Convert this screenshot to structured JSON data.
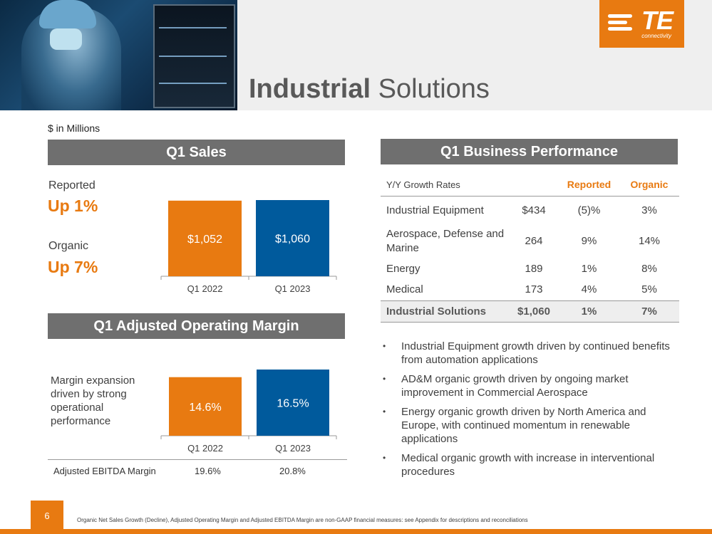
{
  "header": {
    "title_bold": "Industrial",
    "title_rest": "Solutions",
    "logo_text": "TE",
    "logo_sub": "connectivity"
  },
  "units_label": "$ in Millions",
  "q1_sales": {
    "heading": "Q1 Sales",
    "reported_label": "Reported",
    "reported_value": "Up 1%",
    "organic_label": "Organic",
    "organic_value": "Up 7%"
  },
  "margin": {
    "heading": "Q1 Adjusted Operating Margin",
    "note": "Margin expansion driven by strong operational performance",
    "ebitda_label": "Adjusted EBITDA Margin",
    "ebitda_values": [
      "19.6%",
      "20.8%"
    ]
  },
  "performance": {
    "heading": "Q1 Business Performance",
    "col_label": "Y/Y Growth Rates",
    "col_reported": "Reported",
    "col_organic": "Organic",
    "rows": [
      {
        "name": "Industrial Equipment",
        "sales": "$434",
        "reported": "(5)%",
        "organic": "3%"
      },
      {
        "name": "Aerospace, Defense and Marine",
        "sales": "264",
        "reported": "9%",
        "organic": "14%"
      },
      {
        "name": "Energy",
        "sales": "189",
        "reported": "1%",
        "organic": "8%"
      },
      {
        "name": "Medical",
        "sales": "173",
        "reported": "4%",
        "organic": "5%"
      }
    ],
    "total": {
      "name": "Industrial Solutions",
      "sales": "$1,060",
      "reported": "1%",
      "organic": "7%"
    }
  },
  "bullets": [
    "Industrial Equipment growth driven by continued benefits from automation applications",
    "AD&M organic growth driven by ongoing market improvement in Commercial Aerospace",
    "Energy organic growth driven by North America and Europe, with continued momentum in renewable applications",
    "Medical organic growth with increase in interventional procedures"
  ],
  "footer": {
    "page_number": "6",
    "footnote": "Organic Net Sales Growth (Decline), Adjusted Operating Margin and Adjusted EBITDA Margin are non-GAAP financial measures: see Appendix for descriptions and reconciliations"
  },
  "colors": {
    "accent": "#e87a11",
    "blue": "#005a9c",
    "header_gray": "#6f6f6f"
  },
  "chart_data": [
    {
      "type": "bar",
      "title": "Q1 Sales",
      "categories": [
        "Q1 2022",
        "Q1 2023"
      ],
      "values": [
        1052,
        1060
      ],
      "labels": [
        "$1,052",
        "$1,060"
      ],
      "colors": [
        "#e87a11",
        "#005a9c"
      ],
      "ylim": [
        0,
        1060
      ]
    },
    {
      "type": "bar",
      "title": "Q1 Adjusted Operating Margin",
      "categories": [
        "Q1 2022",
        "Q1 2023"
      ],
      "values": [
        14.6,
        16.5
      ],
      "labels": [
        "14.6%",
        "16.5%"
      ],
      "colors": [
        "#e87a11",
        "#005a9c"
      ],
      "ylim": [
        0,
        16.5
      ]
    }
  ]
}
